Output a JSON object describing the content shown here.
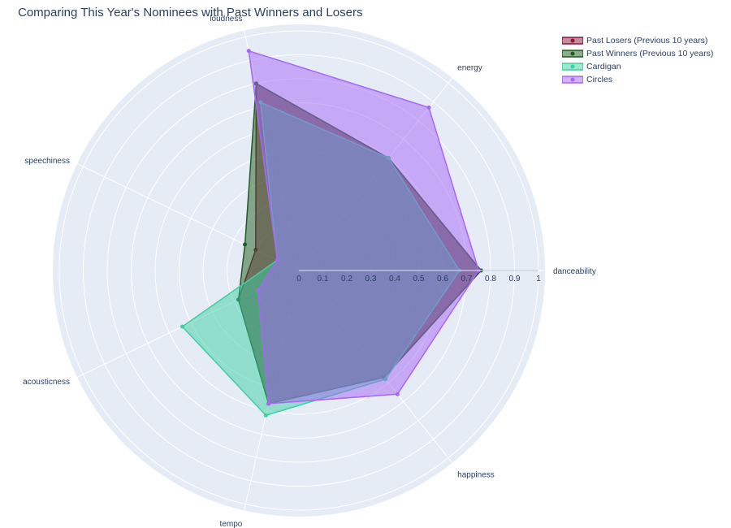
{
  "chart_data": {
    "type": "radar",
    "title": "Comparing This Year's Nominees with Past Winners and Losers",
    "axes": [
      "danceability",
      "energy",
      "loudness",
      "speechiness",
      "acousticness",
      "tempo",
      "happiness"
    ],
    "radial_ticks": [
      "0",
      "0.1",
      "0.2",
      "0.3",
      "0.4",
      "0.5",
      "0.6",
      "0.7",
      "0.8",
      "0.9",
      "1"
    ],
    "radial_range": [
      0,
      1
    ],
    "legend_position": "top-right",
    "grid": true,
    "series": [
      {
        "name": "Past Losers (Previous 10 years)",
        "color": "#8b1a3a",
        "values": [
          0.76,
          0.6,
          0.8,
          0.2,
          0.28,
          0.57,
          0.57
        ]
      },
      {
        "name": "Past Winners (Previous 10 years)",
        "color": "#1f5c1f",
        "values": [
          0.76,
          0.6,
          0.8,
          0.25,
          0.28,
          0.57,
          0.57
        ]
      },
      {
        "name": "Cardigan",
        "color": "#3ecfa3",
        "values": [
          0.67,
          0.6,
          0.72,
          0.1,
          0.54,
          0.62,
          0.58
        ]
      },
      {
        "name": "Circles",
        "color": "#a866f5",
        "values": [
          0.75,
          0.87,
          0.94,
          0.1,
          0.19,
          0.57,
          0.66
        ]
      }
    ]
  }
}
